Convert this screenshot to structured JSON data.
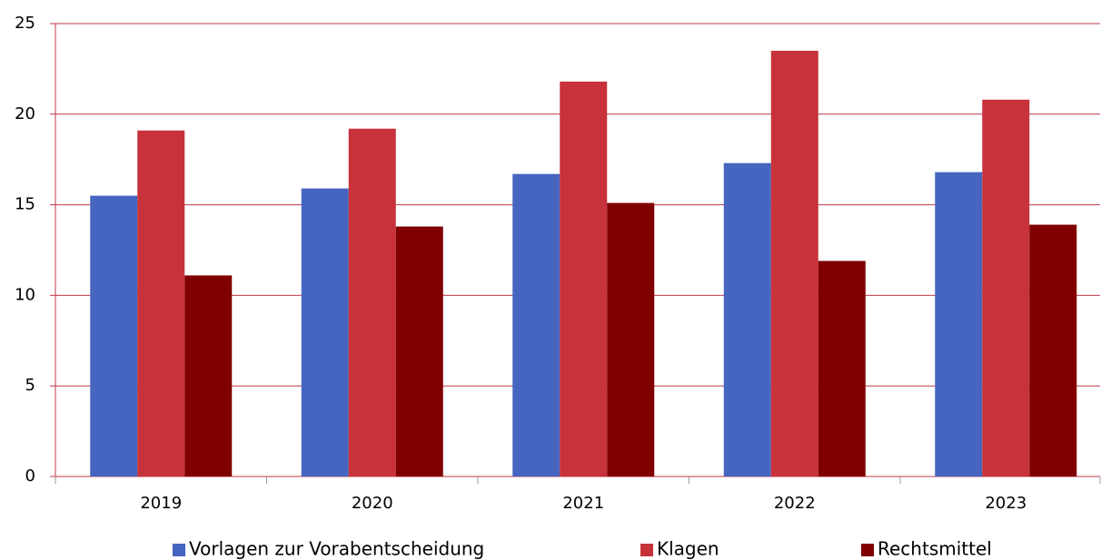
{
  "chart_data": {
    "type": "bar",
    "categories": [
      "2019",
      "2020",
      "2021",
      "2022",
      "2023"
    ],
    "series": [
      {
        "name": "Vorlagen zur Vorabentscheidung",
        "color": "#4565c0",
        "values": [
          15.5,
          15.9,
          16.7,
          17.3,
          16.8
        ]
      },
      {
        "name": "Klagen",
        "color": "#c8323a",
        "values": [
          19.1,
          19.2,
          21.8,
          23.5,
          20.8
        ]
      },
      {
        "name": "Rechtsmittel",
        "color": "#800000",
        "values": [
          11.1,
          13.8,
          15.1,
          11.9,
          13.9
        ]
      }
    ],
    "ylim": [
      0,
      25
    ],
    "yticks": [
      0,
      5,
      10,
      15,
      20,
      25
    ],
    "grid": true,
    "legend": "bottom"
  }
}
